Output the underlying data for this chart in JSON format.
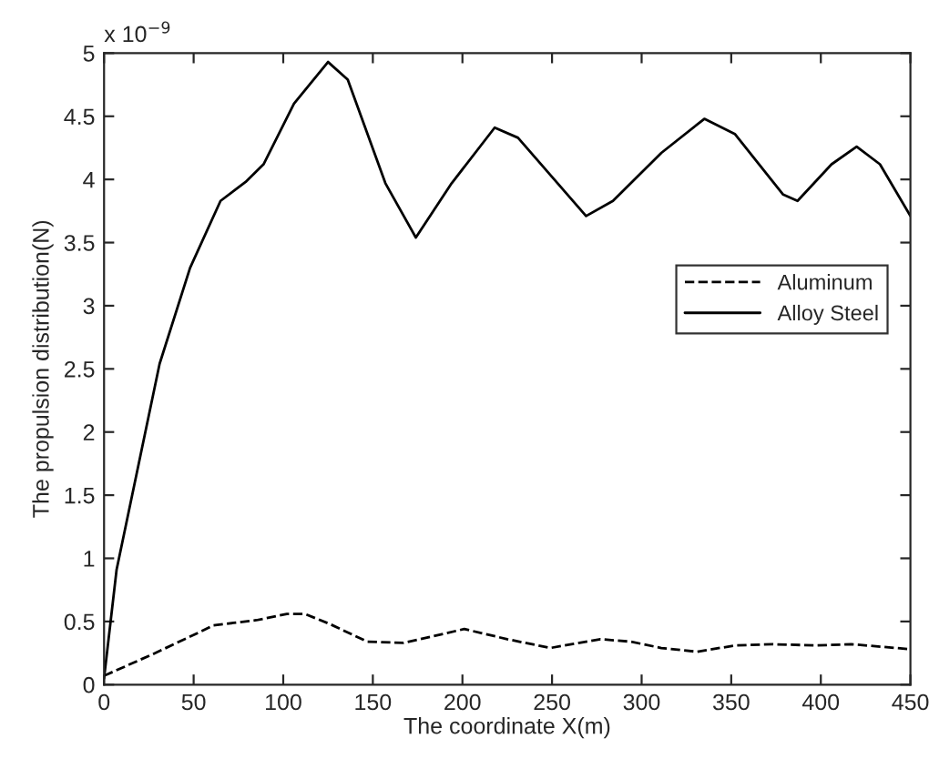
{
  "chart_data": {
    "type": "line",
    "xlabel": "The coordinate X(m)",
    "ylabel": "The propulsion distribution(N)",
    "annotations": [
      "x 10$^{−9}$"
    ],
    "xlim": [
      0,
      450
    ],
    "xticks": [
      0,
      50,
      100,
      150,
      200,
      250,
      300,
      350,
      400,
      450
    ],
    "ylim": [
      0,
      5
    ],
    "yticks": [
      0,
      0.5,
      1,
      1.5,
      2,
      2.5,
      3,
      3.5,
      4,
      4.5,
      5
    ],
    "grid": false,
    "legend": "right",
    "marker": "none",
    "series": [
      {
        "name": "Aluminum",
        "color": "#000000",
        "line_style": "dashed",
        "x": [
          0,
          27,
          51,
          61,
          85,
          102,
          112,
          126,
          147,
          167,
          201,
          225,
          249,
          277,
          294,
          311,
          331,
          352,
          373,
          397,
          417,
          434,
          450
        ],
        "values": [
          0.07,
          0.24,
          0.4,
          0.47,
          0.51,
          0.56,
          0.56,
          0.48,
          0.34,
          0.33,
          0.44,
          0.36,
          0.29,
          0.36,
          0.34,
          0.29,
          0.26,
          0.31,
          0.32,
          0.31,
          0.32,
          0.3,
          0.28
        ]
      },
      {
        "name": "Alloy Steel",
        "color": "#000000",
        "line_style": "solid",
        "x": [
          0,
          7,
          31,
          48,
          65,
          79,
          89,
          106,
          125,
          136,
          157,
          174,
          194,
          218,
          231,
          250,
          269,
          284,
          311,
          335,
          352,
          379,
          387,
          406,
          420,
          433,
          450
        ],
        "values": [
          0.05,
          0.91,
          2.54,
          3.3,
          3.83,
          3.98,
          4.12,
          4.6,
          4.93,
          4.79,
          3.97,
          3.54,
          3.97,
          4.41,
          4.33,
          4.02,
          3.71,
          3.83,
          4.21,
          4.48,
          4.36,
          3.88,
          3.83,
          4.12,
          4.26,
          4.12,
          3.71
        ]
      }
    ]
  }
}
